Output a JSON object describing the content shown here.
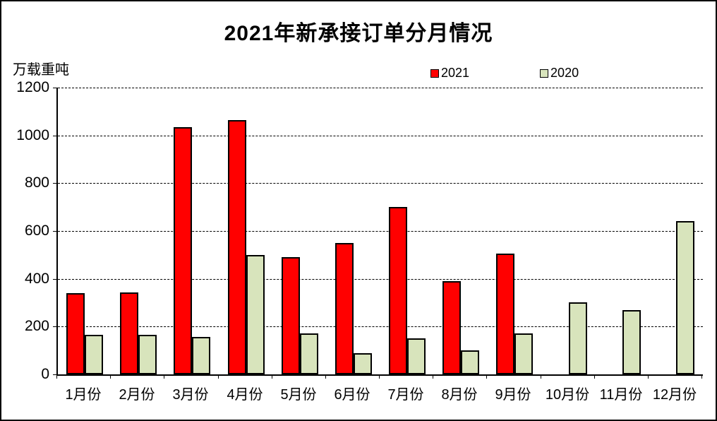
{
  "chart": {
    "title": "2021年新承接订单分月情况",
    "unit_label": "万载重吨"
  },
  "chart_data": {
    "type": "bar",
    "title": "2021年新承接订单分月情况",
    "xlabel": "",
    "ylabel": "万载重吨",
    "categories": [
      "1月份",
      "2月份",
      "3月份",
      "4月份",
      "5月份",
      "6月份",
      "7月份",
      "8月份",
      "9月份",
      "10月份",
      "11月份",
      "12月份"
    ],
    "series": [
      {
        "name": "2021",
        "color": "#FF0000",
        "values": [
          340,
          342,
          1035,
          1065,
          490,
          550,
          700,
          390,
          505,
          null,
          null,
          null
        ]
      },
      {
        "name": "2020",
        "color": "#D8E4BC",
        "values": [
          165,
          165,
          157,
          500,
          170,
          90,
          150,
          100,
          172,
          302,
          270,
          640
        ]
      }
    ],
    "ylim": [
      0,
      1200
    ],
    "yticks": [
      0,
      200,
      400,
      600,
      800,
      1000,
      1200
    ],
    "grid": "horizontal-dashed",
    "legend_position": "top-center",
    "bar_outline_color": "#000000",
    "background_color": "#FFFFFF"
  }
}
